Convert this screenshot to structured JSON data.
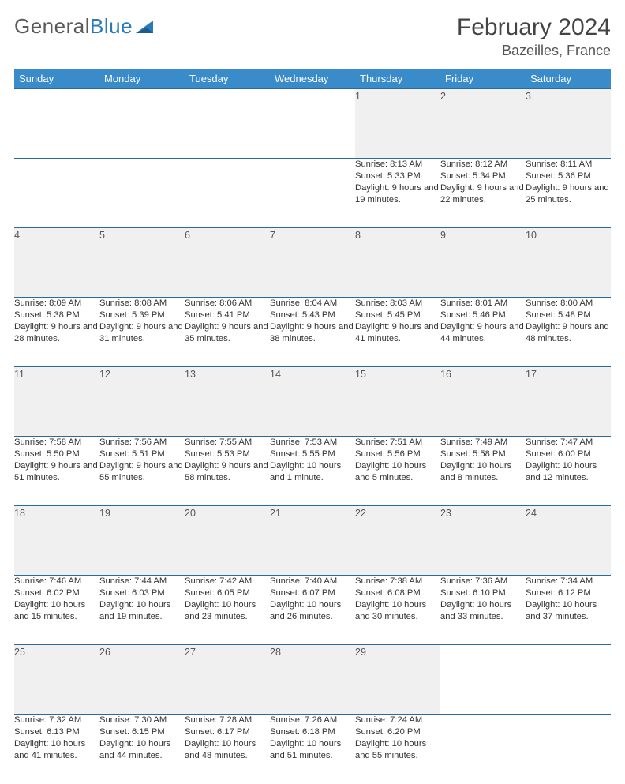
{
  "logo": {
    "text1": "General",
    "text2": "Blue"
  },
  "title": "February 2024",
  "location": "Bazeilles, France",
  "colors": {
    "header_bg": "#3a8bc9",
    "header_text": "#ffffff",
    "rule": "#2a6a9c",
    "daynum_bg": "#f0f0f0",
    "logo_gray": "#5a5a5a",
    "logo_blue": "#2a7ab8"
  },
  "day_headers": [
    "Sunday",
    "Monday",
    "Tuesday",
    "Wednesday",
    "Thursday",
    "Friday",
    "Saturday"
  ],
  "weeks": [
    [
      null,
      null,
      null,
      null,
      {
        "n": "1",
        "sr": "8:13 AM",
        "ss": "5:33 PM",
        "dl": "9 hours and 19 minutes."
      },
      {
        "n": "2",
        "sr": "8:12 AM",
        "ss": "5:34 PM",
        "dl": "9 hours and 22 minutes."
      },
      {
        "n": "3",
        "sr": "8:11 AM",
        "ss": "5:36 PM",
        "dl": "9 hours and 25 minutes."
      }
    ],
    [
      {
        "n": "4",
        "sr": "8:09 AM",
        "ss": "5:38 PM",
        "dl": "9 hours and 28 minutes."
      },
      {
        "n": "5",
        "sr": "8:08 AM",
        "ss": "5:39 PM",
        "dl": "9 hours and 31 minutes."
      },
      {
        "n": "6",
        "sr": "8:06 AM",
        "ss": "5:41 PM",
        "dl": "9 hours and 35 minutes."
      },
      {
        "n": "7",
        "sr": "8:04 AM",
        "ss": "5:43 PM",
        "dl": "9 hours and 38 minutes."
      },
      {
        "n": "8",
        "sr": "8:03 AM",
        "ss": "5:45 PM",
        "dl": "9 hours and 41 minutes."
      },
      {
        "n": "9",
        "sr": "8:01 AM",
        "ss": "5:46 PM",
        "dl": "9 hours and 44 minutes."
      },
      {
        "n": "10",
        "sr": "8:00 AM",
        "ss": "5:48 PM",
        "dl": "9 hours and 48 minutes."
      }
    ],
    [
      {
        "n": "11",
        "sr": "7:58 AM",
        "ss": "5:50 PM",
        "dl": "9 hours and 51 minutes."
      },
      {
        "n": "12",
        "sr": "7:56 AM",
        "ss": "5:51 PM",
        "dl": "9 hours and 55 minutes."
      },
      {
        "n": "13",
        "sr": "7:55 AM",
        "ss": "5:53 PM",
        "dl": "9 hours and 58 minutes."
      },
      {
        "n": "14",
        "sr": "7:53 AM",
        "ss": "5:55 PM",
        "dl": "10 hours and 1 minute."
      },
      {
        "n": "15",
        "sr": "7:51 AM",
        "ss": "5:56 PM",
        "dl": "10 hours and 5 minutes."
      },
      {
        "n": "16",
        "sr": "7:49 AM",
        "ss": "5:58 PM",
        "dl": "10 hours and 8 minutes."
      },
      {
        "n": "17",
        "sr": "7:47 AM",
        "ss": "6:00 PM",
        "dl": "10 hours and 12 minutes."
      }
    ],
    [
      {
        "n": "18",
        "sr": "7:46 AM",
        "ss": "6:02 PM",
        "dl": "10 hours and 15 minutes."
      },
      {
        "n": "19",
        "sr": "7:44 AM",
        "ss": "6:03 PM",
        "dl": "10 hours and 19 minutes."
      },
      {
        "n": "20",
        "sr": "7:42 AM",
        "ss": "6:05 PM",
        "dl": "10 hours and 23 minutes."
      },
      {
        "n": "21",
        "sr": "7:40 AM",
        "ss": "6:07 PM",
        "dl": "10 hours and 26 minutes."
      },
      {
        "n": "22",
        "sr": "7:38 AM",
        "ss": "6:08 PM",
        "dl": "10 hours and 30 minutes."
      },
      {
        "n": "23",
        "sr": "7:36 AM",
        "ss": "6:10 PM",
        "dl": "10 hours and 33 minutes."
      },
      {
        "n": "24",
        "sr": "7:34 AM",
        "ss": "6:12 PM",
        "dl": "10 hours and 37 minutes."
      }
    ],
    [
      {
        "n": "25",
        "sr": "7:32 AM",
        "ss": "6:13 PM",
        "dl": "10 hours and 41 minutes."
      },
      {
        "n": "26",
        "sr": "7:30 AM",
        "ss": "6:15 PM",
        "dl": "10 hours and 44 minutes."
      },
      {
        "n": "27",
        "sr": "7:28 AM",
        "ss": "6:17 PM",
        "dl": "10 hours and 48 minutes."
      },
      {
        "n": "28",
        "sr": "7:26 AM",
        "ss": "6:18 PM",
        "dl": "10 hours and 51 minutes."
      },
      {
        "n": "29",
        "sr": "7:24 AM",
        "ss": "6:20 PM",
        "dl": "10 hours and 55 minutes."
      },
      null,
      null
    ]
  ],
  "labels": {
    "sunrise": "Sunrise: ",
    "sunset": "Sunset: ",
    "daylight": "Daylight: "
  }
}
